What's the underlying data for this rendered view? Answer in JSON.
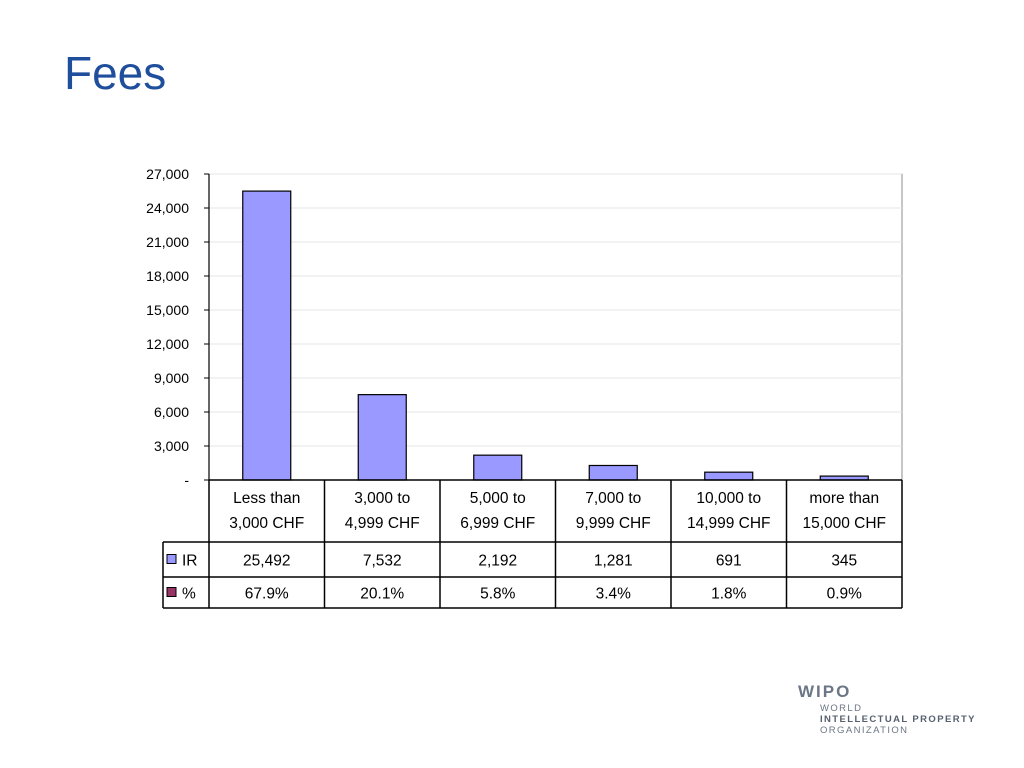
{
  "slide": {
    "title": "Fees"
  },
  "colors": {
    "title": "#1f4e9c",
    "bar": "#9999ff",
    "series_pct": "#993366"
  },
  "logo": {
    "mark": "WIPO",
    "lines": [
      "WORLD",
      "INTELLECTUAL PROPERTY",
      "ORGANIZATION"
    ]
  },
  "chart_data": {
    "type": "bar",
    "categories": [
      [
        "Less than",
        "3,000 CHF"
      ],
      [
        "3,000 to",
        "4,999 CHF"
      ],
      [
        "5,000 to",
        "6,999 CHF"
      ],
      [
        "7,000 to",
        "9,999 CHF"
      ],
      [
        "10,000 to",
        "14,999 CHF"
      ],
      [
        "more than",
        "15,000 CHF"
      ]
    ],
    "ylim": [
      0,
      27000
    ],
    "yticks": [
      "-",
      "3,000",
      "6,000",
      "9,000",
      "12,000",
      "15,000",
      "18,000",
      "21,000",
      "24,000",
      "27,000"
    ],
    "ytick_values": [
      0,
      3000,
      6000,
      9000,
      12000,
      15000,
      18000,
      21000,
      24000,
      27000
    ],
    "grid": true,
    "series": [
      {
        "name": "IR",
        "values": [
          25492,
          7532,
          2192,
          1281,
          691,
          345
        ],
        "labels": [
          "25,492",
          "7,532",
          "2,192",
          "1,281",
          "691",
          "345"
        ],
        "plotted": true
      },
      {
        "name": "%",
        "values": [
          67.9,
          20.1,
          5.8,
          3.4,
          1.8,
          0.9
        ],
        "labels": [
          "67.9%",
          "20.1%",
          "5.8%",
          "3.4%",
          "1.8%",
          "0.9%"
        ],
        "plotted": false
      }
    ]
  }
}
